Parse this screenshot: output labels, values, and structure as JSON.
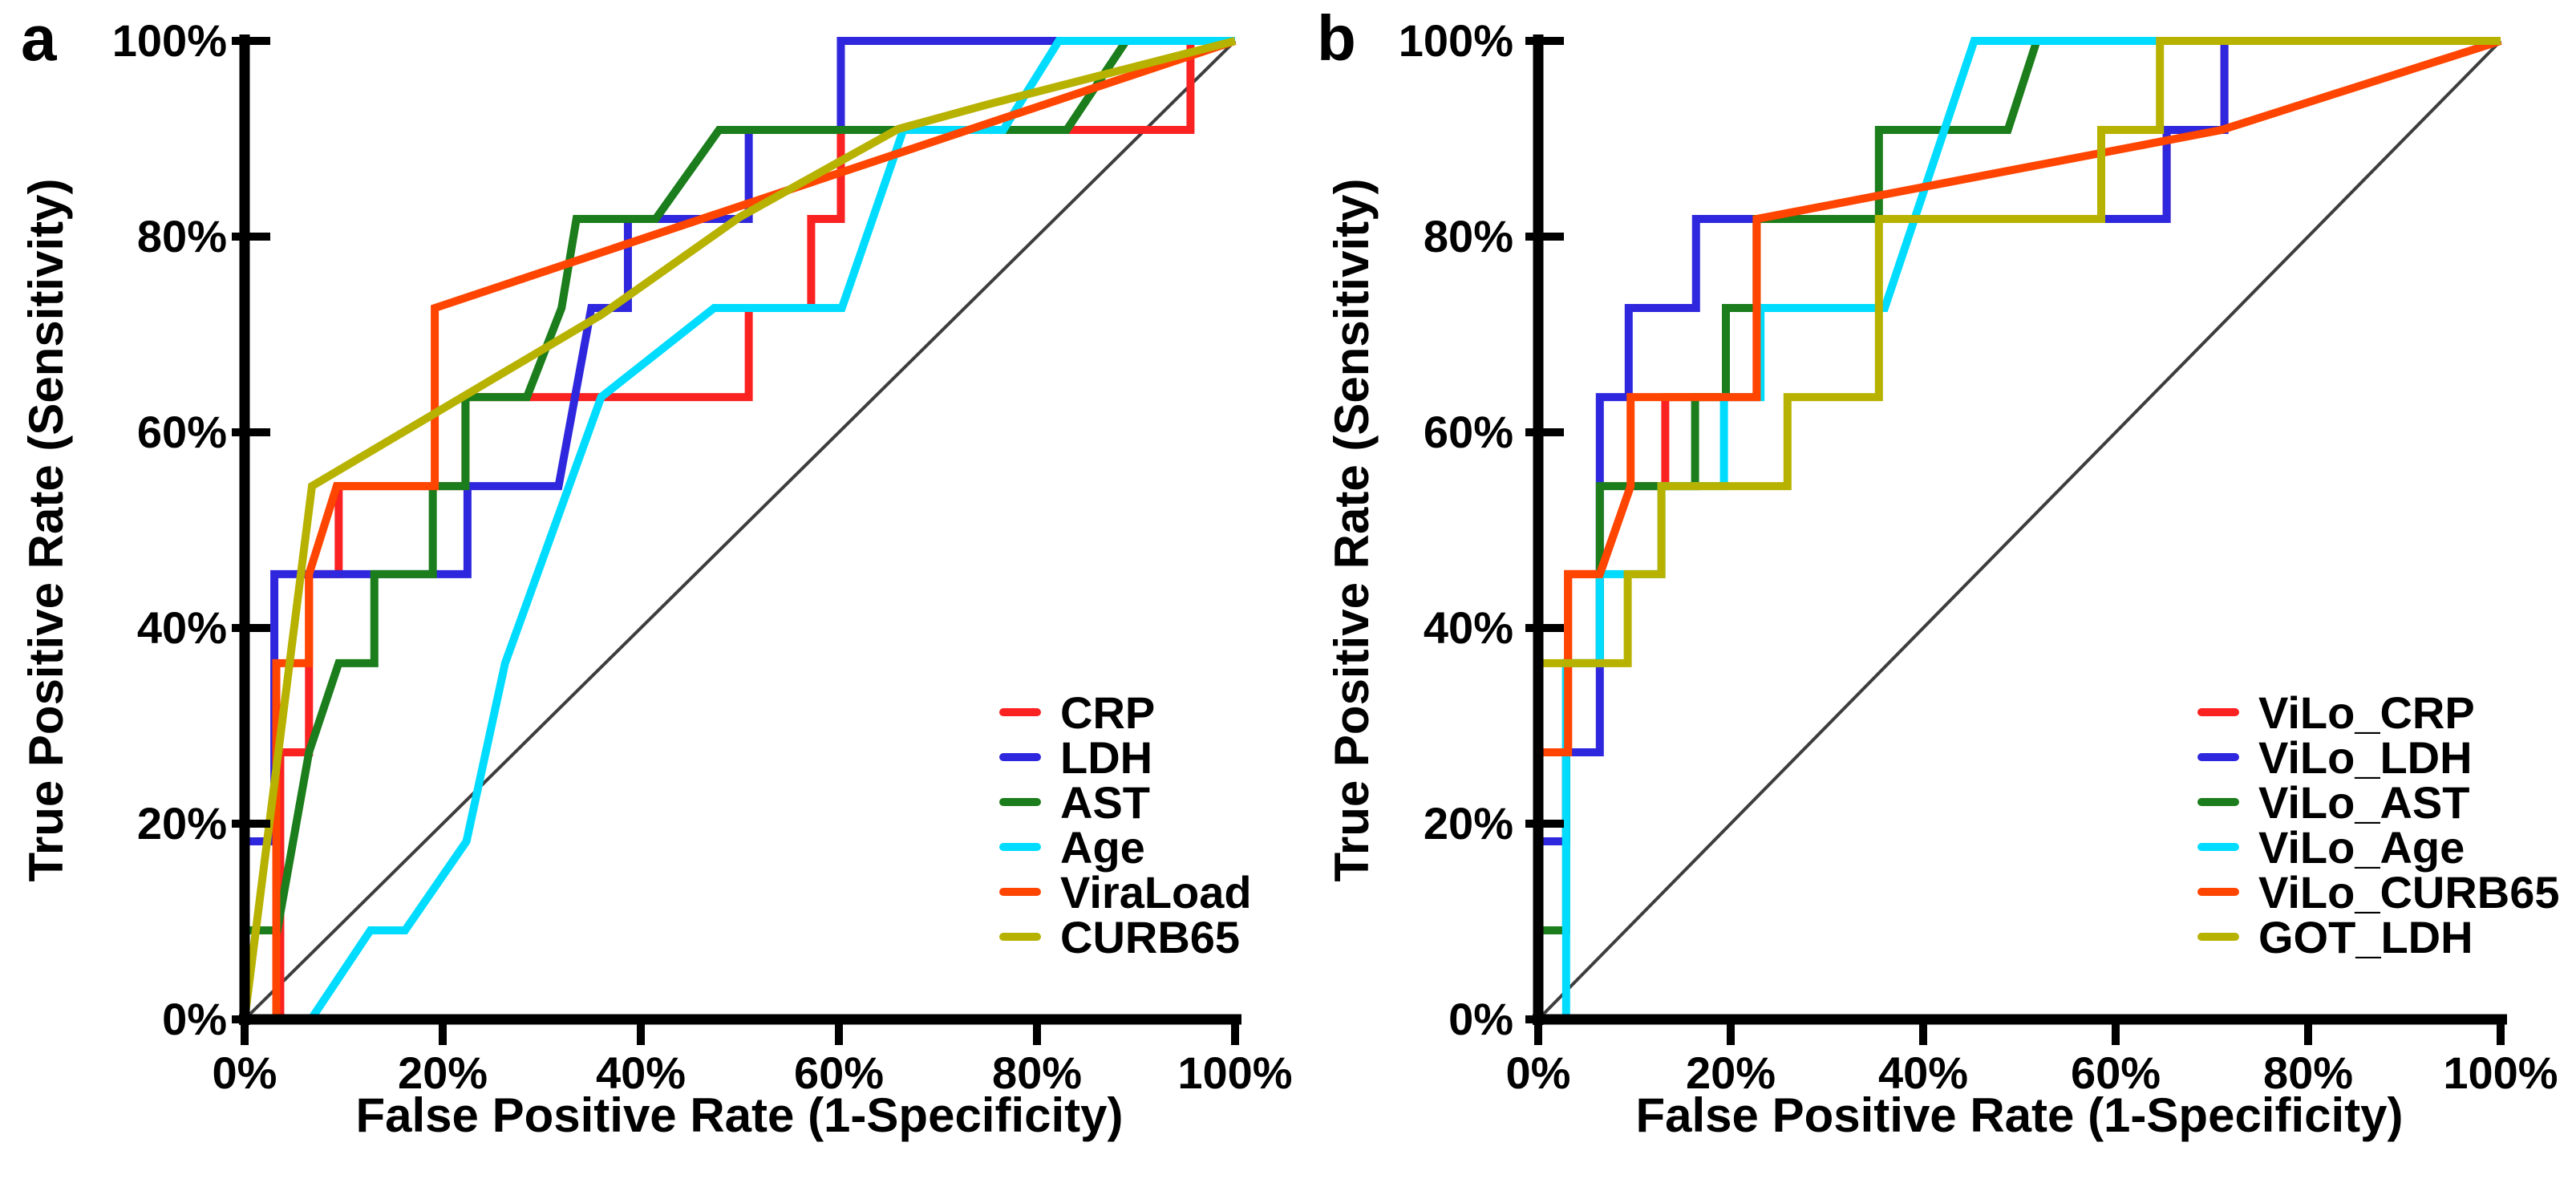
{
  "figure": {
    "panels": [
      {
        "label": "a",
        "y_axis_title": "True Positive Rate (Sensitivity)",
        "x_axis_title": "False Positive Rate (1-Specificity)",
        "x_ticks": [
          "0%",
          "20%",
          "40%",
          "60%",
          "80%",
          "100%"
        ],
        "y_ticks": [
          "0%",
          "20%",
          "40%",
          "60%",
          "80%",
          "100%"
        ],
        "legend": [
          "CRP",
          "LDH",
          "AST",
          "Age",
          "ViraLoad",
          "CURB65"
        ]
      },
      {
        "label": "b",
        "y_axis_title": "True Positive Rate (Sensitivity)",
        "x_axis_title": "False Positive Rate (1-Specificity)",
        "x_ticks": [
          "0%",
          "20%",
          "40%",
          "60%",
          "80%",
          "100%"
        ],
        "y_ticks": [
          "0%",
          "20%",
          "40%",
          "60%",
          "80%",
          "100%"
        ],
        "legend": [
          "ViLo_CRP",
          "ViLo_LDH",
          "ViLo_AST",
          "ViLo_Age",
          "ViLo_CURB65",
          "GOT_LDH"
        ]
      }
    ],
    "colors": {
      "axis": "#000000",
      "reference_line": "#3d3d3d"
    }
  },
  "chart_data": [
    {
      "type": "line",
      "title": "ROC curves, panel a",
      "xlabel": "False Positive Rate (1-Specificity)",
      "ylabel": "True Positive Rate (Sensitivity)",
      "xlim": [
        0,
        100
      ],
      "ylim": [
        0,
        100
      ],
      "x_tick_values": [
        0,
        20,
        40,
        60,
        80,
        100
      ],
      "y_tick_values": [
        0,
        20,
        40,
        60,
        80,
        100
      ],
      "grid": false,
      "legend_position": "lower right",
      "reference_line": [
        [
          0,
          0
        ],
        [
          100,
          100
        ]
      ],
      "series": [
        {
          "name": "CRP",
          "color": "#fb2222",
          "points": [
            [
              0,
              0
            ],
            [
              3.6,
              0
            ],
            [
              3.6,
              27.3
            ],
            [
              6.5,
              27.3
            ],
            [
              6.5,
              45.5
            ],
            [
              9.5,
              45.5
            ],
            [
              9.5,
              54.5
            ],
            [
              22.3,
              54.5
            ],
            [
              22.3,
              63.6
            ],
            [
              50.9,
              63.6
            ],
            [
              50.9,
              72.7
            ],
            [
              57.2,
              72.7
            ],
            [
              57.2,
              81.8
            ],
            [
              60.2,
              81.8
            ],
            [
              60.2,
              90.9
            ],
            [
              95.5,
              90.9
            ],
            [
              95.5,
              100
            ],
            [
              100,
              100
            ]
          ]
        },
        {
          "name": "LDH",
          "color": "#2f27dd",
          "points": [
            [
              0,
              0
            ],
            [
              0,
              18.2
            ],
            [
              3,
              18.2
            ],
            [
              3,
              45.5
            ],
            [
              22.5,
              45.5
            ],
            [
              22.5,
              54.5
            ],
            [
              31.7,
              54.5
            ],
            [
              35,
              72.7
            ],
            [
              38.7,
              72.7
            ],
            [
              38.7,
              81.8
            ],
            [
              50.9,
              81.8
            ],
            [
              50.9,
              90.9
            ],
            [
              60.2,
              90.9
            ],
            [
              60.2,
              100
            ],
            [
              100,
              100
            ]
          ]
        },
        {
          "name": "AST",
          "color": "#1b7d1b",
          "points": [
            [
              0,
              0
            ],
            [
              0,
              9.1
            ],
            [
              3.3,
              9.1
            ],
            [
              6.5,
              27.3
            ],
            [
              9.5,
              36.4
            ],
            [
              13.1,
              36.4
            ],
            [
              13.1,
              45.5
            ],
            [
              19,
              45.5
            ],
            [
              19,
              54.5
            ],
            [
              22.3,
              54.5
            ],
            [
              22.3,
              63.6
            ],
            [
              28.5,
              63.6
            ],
            [
              32,
              72.7
            ],
            [
              33.5,
              81.8
            ],
            [
              41.5,
              81.8
            ],
            [
              47.9,
              90.9
            ],
            [
              83,
              90.9
            ],
            [
              89,
              100
            ],
            [
              100,
              100
            ]
          ]
        },
        {
          "name": "Age",
          "color": "#00dcff",
          "points": [
            [
              0,
              0
            ],
            [
              6.7,
              0
            ],
            [
              12.7,
              9.1
            ],
            [
              16.2,
              9.1
            ],
            [
              22.4,
              18.2
            ],
            [
              26.3,
              36.4
            ],
            [
              36,
              63.6
            ],
            [
              47.4,
              72.7
            ],
            [
              60.3,
              72.7
            ],
            [
              66.5,
              90.9
            ],
            [
              76.6,
              90.9
            ],
            [
              82.2,
              100
            ],
            [
              100,
              100
            ]
          ]
        },
        {
          "name": "ViraLoad",
          "color": "#ff4500",
          "points": [
            [
              0,
              0
            ],
            [
              3.2,
              0
            ],
            [
              3.2,
              36.4
            ],
            [
              6.5,
              36.4
            ],
            [
              6.5,
              45.5
            ],
            [
              9.3,
              54.5
            ],
            [
              19.2,
              54.5
            ],
            [
              19.2,
              72.7
            ],
            [
              100,
              100
            ]
          ]
        },
        {
          "name": "CURB65",
          "color": "#b7b200",
          "points": [
            [
              0,
              0
            ],
            [
              6.8,
              54.5
            ],
            [
              36,
              72
            ],
            [
              50,
              82
            ],
            [
              66,
              91
            ],
            [
              75,
              93.5
            ],
            [
              100,
              100
            ]
          ]
        }
      ]
    },
    {
      "type": "line",
      "title": "ROC curves, panel b",
      "xlabel": "False Positive Rate (1-Specificity)",
      "ylabel": "True Positive Rate (Sensitivity)",
      "xlim": [
        0,
        100
      ],
      "ylim": [
        0,
        100
      ],
      "x_tick_values": [
        0,
        20,
        40,
        60,
        80,
        100
      ],
      "y_tick_values": [
        0,
        20,
        40,
        60,
        80,
        100
      ],
      "grid": false,
      "legend_position": "lower right",
      "reference_line": [
        [
          0,
          0
        ],
        [
          100,
          100
        ]
      ],
      "series": [
        {
          "name": "ViLo_CRP",
          "color": "#fb2222",
          "points": [
            [
              0,
              0
            ],
            [
              0,
              27.3
            ],
            [
              3.1,
              27.3
            ],
            [
              3.1,
              45.5
            ],
            [
              6.4,
              45.5
            ],
            [
              9.6,
              54.5
            ],
            [
              13.2,
              54.5
            ],
            [
              13.2,
              63.6
            ],
            [
              22.7,
              63.6
            ],
            [
              22.7,
              81.8
            ],
            [
              65.3,
              81.8
            ],
            [
              65.3,
              90.9
            ],
            [
              71.3,
              90.9
            ],
            [
              71.3,
              100
            ],
            [
              100,
              100
            ]
          ]
        },
        {
          "name": "ViLo_LDH",
          "color": "#2f27dd",
          "points": [
            [
              0,
              0
            ],
            [
              0,
              18.2
            ],
            [
              2.9,
              18.2
            ],
            [
              2.9,
              27.3
            ],
            [
              6.4,
              27.3
            ],
            [
              6.4,
              63.6
            ],
            [
              9.4,
              63.6
            ],
            [
              9.4,
              72.7
            ],
            [
              16.4,
              72.7
            ],
            [
              16.4,
              81.8
            ],
            [
              65.3,
              81.8
            ],
            [
              65.3,
              90.9
            ],
            [
              71.3,
              90.9
            ],
            [
              71.3,
              100
            ],
            [
              100,
              100
            ]
          ]
        },
        {
          "name": "ViLo_AST",
          "color": "#1b7d1b",
          "points": [
            [
              0,
              0
            ],
            [
              0,
              9.1
            ],
            [
              2.9,
              9.1
            ],
            [
              2.9,
              36.4
            ],
            [
              6.4,
              36.4
            ],
            [
              6.4,
              54.5
            ],
            [
              16.3,
              54.5
            ],
            [
              16.3,
              63.6
            ],
            [
              19.5,
              63.6
            ],
            [
              19.5,
              72.7
            ],
            [
              22.7,
              72.7
            ],
            [
              22.7,
              81.8
            ],
            [
              35.4,
              81.8
            ],
            [
              35.4,
              90.9
            ],
            [
              48.8,
              90.9
            ],
            [
              51.8,
              100
            ],
            [
              100,
              100
            ]
          ]
        },
        {
          "name": "ViLo_Age",
          "color": "#00dcff",
          "points": [
            [
              0,
              0
            ],
            [
              2.9,
              0
            ],
            [
              2.9,
              36.4
            ],
            [
              6.4,
              36.4
            ],
            [
              6.4,
              45.5
            ],
            [
              12.8,
              45.5
            ],
            [
              12.8,
              54.5
            ],
            [
              19.3,
              54.5
            ],
            [
              19.3,
              63.6
            ],
            [
              23.1,
              63.6
            ],
            [
              23.1,
              72.7
            ],
            [
              36,
              72.7
            ],
            [
              45.3,
              100
            ],
            [
              100,
              100
            ]
          ]
        },
        {
          "name": "ViLo_CURB65",
          "color": "#ff4500",
          "points": [
            [
              0,
              0
            ],
            [
              0,
              27.3
            ],
            [
              3.1,
              27.3
            ],
            [
              3.1,
              45.5
            ],
            [
              6.4,
              45.5
            ],
            [
              9.6,
              54.5
            ],
            [
              9.6,
              63.6
            ],
            [
              22.7,
              63.6
            ],
            [
              22.7,
              81.8
            ],
            [
              71,
              90.9
            ],
            [
              100,
              100
            ]
          ]
        },
        {
          "name": "GOT_LDH",
          "color": "#b7b200",
          "points": [
            [
              0,
              0
            ],
            [
              0,
              36.4
            ],
            [
              9.3,
              36.4
            ],
            [
              9.3,
              45.5
            ],
            [
              12.8,
              45.5
            ],
            [
              12.8,
              54.5
            ],
            [
              25.9,
              54.5
            ],
            [
              25.9,
              63.6
            ],
            [
              35.4,
              63.6
            ],
            [
              35.4,
              81.8
            ],
            [
              58.5,
              81.8
            ],
            [
              58.5,
              90.9
            ],
            [
              64.6,
              90.9
            ],
            [
              64.6,
              100
            ],
            [
              100,
              100
            ]
          ]
        }
      ]
    }
  ]
}
